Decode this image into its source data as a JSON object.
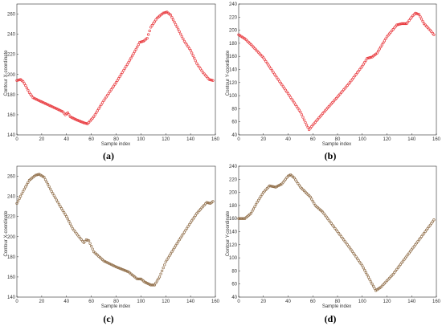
{
  "chart_data": [
    {
      "type": "scatter",
      "caption": "(a)",
      "xlabel": "Sample index",
      "ylabel": "Contour X-coordinate",
      "xlim": [
        0,
        160
      ],
      "ylim": [
        140,
        270
      ],
      "xticks": [
        0,
        20,
        40,
        60,
        80,
        100,
        120,
        140,
        160
      ],
      "yticks": [
        140,
        160,
        180,
        200,
        220,
        240,
        260
      ],
      "marker_color": "#e8383d",
      "marker": "o",
      "anchors": [
        [
          0,
          194
        ],
        [
          3,
          195
        ],
        [
          5,
          193
        ],
        [
          7,
          189
        ],
        [
          10,
          182
        ],
        [
          13,
          177
        ],
        [
          18,
          174
        ],
        [
          25,
          170
        ],
        [
          32,
          166
        ],
        [
          37,
          163
        ],
        [
          39,
          160
        ],
        [
          41,
          162
        ],
        [
          43,
          158
        ],
        [
          48,
          155
        ],
        [
          54,
          152
        ],
        [
          57,
          151
        ],
        [
          62,
          158
        ],
        [
          70,
          174
        ],
        [
          80,
          192
        ],
        [
          90,
          212
        ],
        [
          96,
          225
        ],
        [
          99,
          232
        ],
        [
          102,
          233
        ],
        [
          105,
          236
        ],
        [
          108,
          247
        ],
        [
          113,
          256
        ],
        [
          118,
          261
        ],
        [
          121,
          262
        ],
        [
          124,
          259
        ],
        [
          130,
          245
        ],
        [
          135,
          233
        ],
        [
          140,
          224
        ],
        [
          145,
          211
        ],
        [
          150,
          202
        ],
        [
          155,
          195
        ],
        [
          158,
          194
        ]
      ]
    },
    {
      "type": "scatter",
      "caption": "(b)",
      "xlabel": "Sample index",
      "ylabel": "Contour Y-coordinate",
      "xlim": [
        0,
        160
      ],
      "ylim": [
        40,
        240
      ],
      "xticks": [
        0,
        20,
        40,
        60,
        80,
        100,
        120,
        140,
        160
      ],
      "yticks": [
        40,
        60,
        80,
        100,
        120,
        140,
        160,
        180,
        200,
        220,
        240
      ],
      "marker_color": "#e8383d",
      "marker": "o",
      "anchors": [
        [
          0,
          193
        ],
        [
          5,
          187
        ],
        [
          10,
          178
        ],
        [
          20,
          158
        ],
        [
          30,
          130
        ],
        [
          40,
          103
        ],
        [
          50,
          75
        ],
        [
          55,
          55
        ],
        [
          57,
          48
        ],
        [
          60,
          55
        ],
        [
          70,
          77
        ],
        [
          80,
          98
        ],
        [
          90,
          120
        ],
        [
          100,
          145
        ],
        [
          104,
          157
        ],
        [
          108,
          159
        ],
        [
          112,
          165
        ],
        [
          120,
          190
        ],
        [
          128,
          208
        ],
        [
          132,
          210
        ],
        [
          136,
          210
        ],
        [
          140,
          220
        ],
        [
          143,
          226
        ],
        [
          146,
          224
        ],
        [
          150,
          210
        ],
        [
          155,
          200
        ],
        [
          158,
          193
        ]
      ]
    },
    {
      "type": "scatter",
      "caption": "(c)",
      "xlabel": "Sample index",
      "ylabel": "Contour X-coordinate",
      "xlim": [
        0,
        160
      ],
      "ylim": [
        140,
        270
      ],
      "xticks": [
        0,
        20,
        40,
        60,
        80,
        100,
        120,
        140,
        160
      ],
      "yticks": [
        140,
        160,
        180,
        200,
        220,
        240,
        260
      ],
      "marker_color": "#8e6b45",
      "marker": "o",
      "anchors": [
        [
          0,
          233
        ],
        [
          5,
          245
        ],
        [
          10,
          256
        ],
        [
          15,
          261
        ],
        [
          18,
          262
        ],
        [
          22,
          259
        ],
        [
          28,
          245
        ],
        [
          35,
          230
        ],
        [
          40,
          220
        ],
        [
          45,
          208
        ],
        [
          50,
          200
        ],
        [
          54,
          194
        ],
        [
          56,
          197
        ],
        [
          58,
          196
        ],
        [
          62,
          185
        ],
        [
          70,
          176
        ],
        [
          80,
          170
        ],
        [
          90,
          165
        ],
        [
          97,
          158
        ],
        [
          100,
          158
        ],
        [
          103,
          155
        ],
        [
          108,
          152
        ],
        [
          111,
          152
        ],
        [
          115,
          160
        ],
        [
          120,
          175
        ],
        [
          130,
          195
        ],
        [
          140,
          214
        ],
        [
          145,
          223
        ],
        [
          150,
          230
        ],
        [
          153,
          234
        ],
        [
          156,
          233
        ],
        [
          158,
          235
        ]
      ]
    },
    {
      "type": "scatter",
      "caption": "(d)",
      "xlabel": "Sample index",
      "ylabel": "Contour Y-coordinate",
      "xlim": [
        0,
        160
      ],
      "ylim": [
        40,
        240
      ],
      "xticks": [
        0,
        20,
        40,
        60,
        80,
        100,
        120,
        140,
        160
      ],
      "yticks": [
        40,
        60,
        80,
        100,
        120,
        140,
        160,
        180,
        200,
        220,
        240
      ],
      "marker_color": "#8e6b45",
      "marker": "o",
      "anchors": [
        [
          0,
          160
        ],
        [
          5,
          160
        ],
        [
          10,
          168
        ],
        [
          15,
          185
        ],
        [
          20,
          200
        ],
        [
          25,
          210
        ],
        [
          30,
          208
        ],
        [
          35,
          213
        ],
        [
          40,
          225
        ],
        [
          42,
          227
        ],
        [
          45,
          222
        ],
        [
          50,
          208
        ],
        [
          58,
          193
        ],
        [
          62,
          180
        ],
        [
          68,
          170
        ],
        [
          80,
          140
        ],
        [
          90,
          115
        ],
        [
          100,
          88
        ],
        [
          108,
          60
        ],
        [
          111,
          50
        ],
        [
          115,
          55
        ],
        [
          125,
          75
        ],
        [
          135,
          100
        ],
        [
          145,
          125
        ],
        [
          155,
          150
        ],
        [
          158,
          158
        ]
      ]
    }
  ]
}
